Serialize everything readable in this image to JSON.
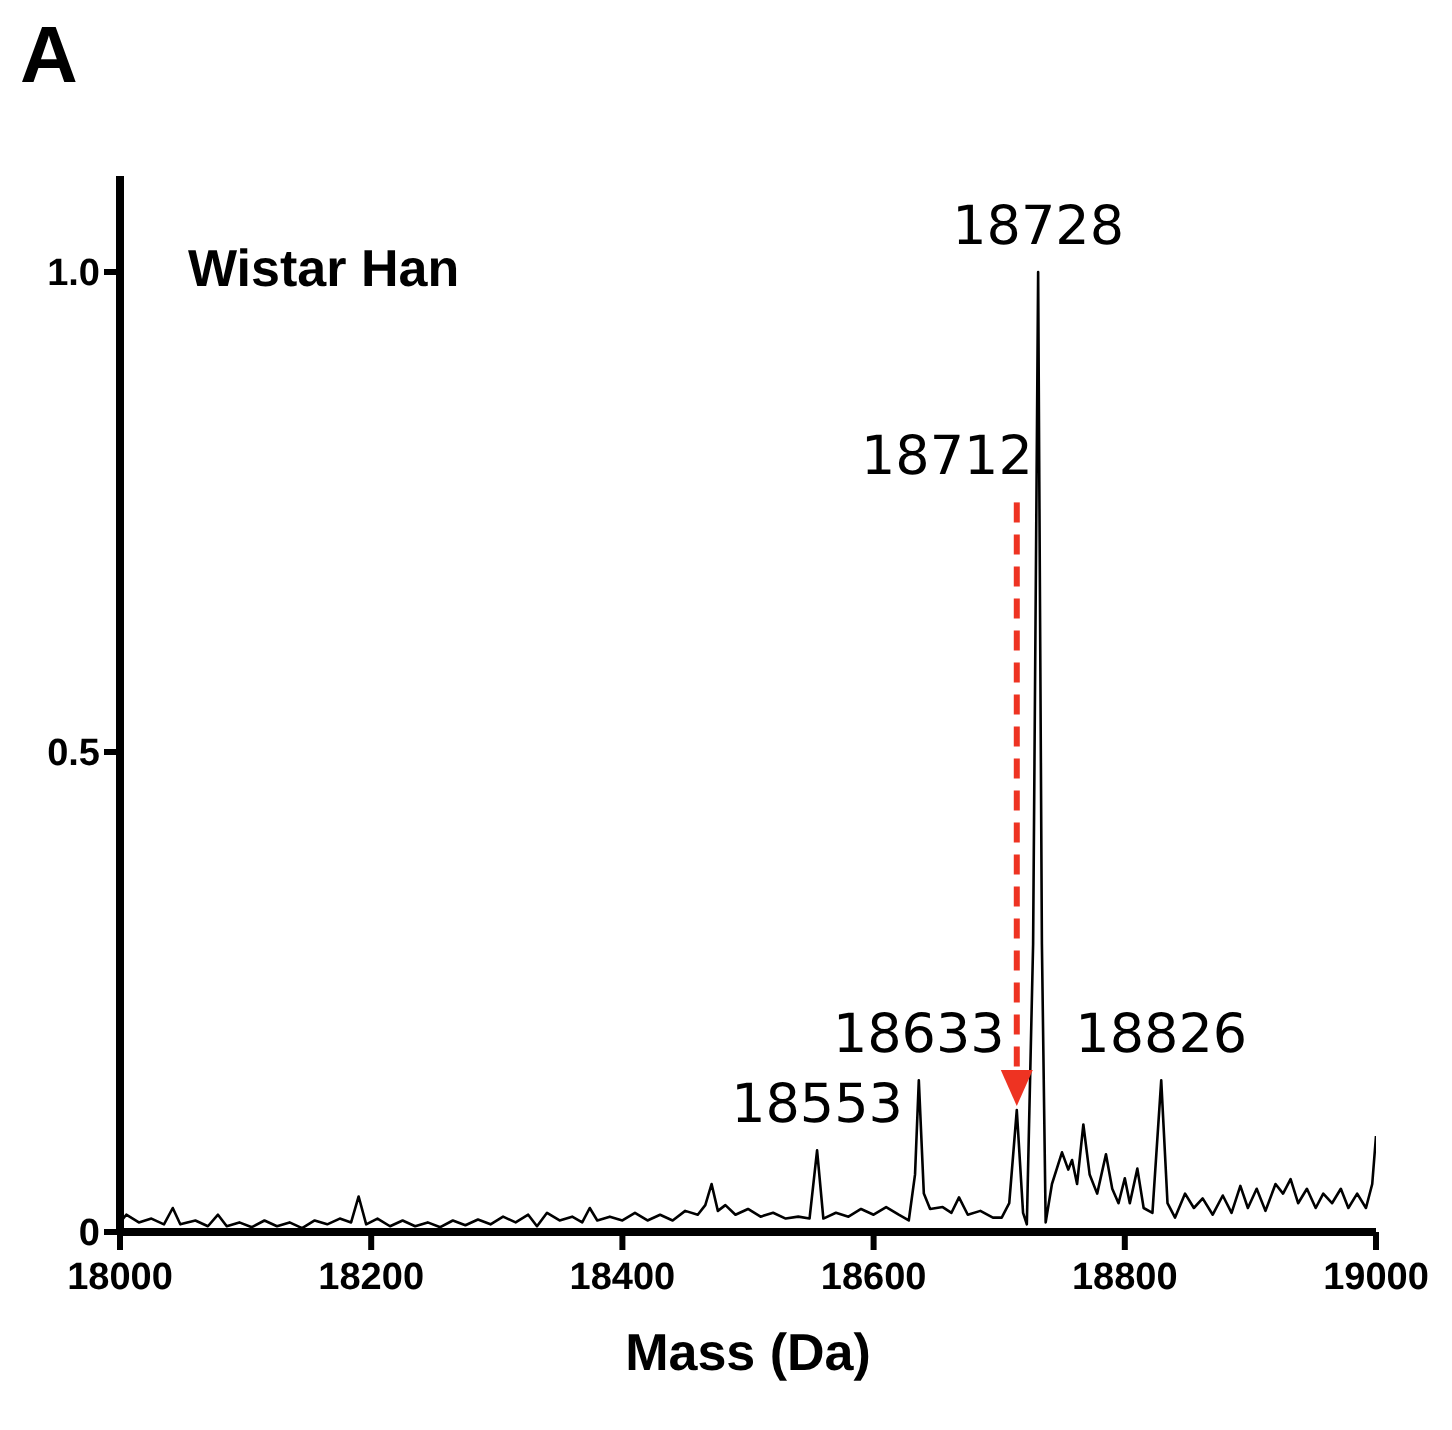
{
  "chart_data": {
    "type": "line",
    "title": "A",
    "xlabel": "Mass (Da)",
    "color": "#000000",
    "marker": "none",
    "line_style": "solid",
    "grid": false,
    "legend": false,
    "xlim": [
      18000,
      19000
    ],
    "xticks": [
      18000,
      18200,
      18400,
      18600,
      18800,
      19000
    ],
    "ylim": [
      0,
      1.1
    ],
    "yticks": [
      0,
      0.5,
      {
        "value": 1,
        "label": "1.0"
      }
    ],
    "annotations": [
      "Wistar Han",
      {
        "text": "18553",
        "x": 18555,
        "y": 0.085
      },
      {
        "text": "18633",
        "x": 18636,
        "y": 0.158
      },
      "18712",
      {
        "text": "18728",
        "x": 18731,
        "y": 1.0
      },
      {
        "text": "18826",
        "x": 18829,
        "y": 0.158
      }
    ],
    "x": [
      18000,
      18005,
      18015,
      18025,
      18035,
      18042,
      18048,
      18060,
      18070,
      18078,
      18085,
      18095,
      18105,
      18115,
      18125,
      18135,
      18145,
      18155,
      18165,
      18175,
      18184,
      18190,
      18196,
      18205,
      18215,
      18225,
      18235,
      18245,
      18255,
      18265,
      18275,
      18285,
      18295,
      18305,
      18315,
      18325,
      18332,
      18340,
      18350,
      18360,
      18368,
      18374,
      18380,
      18390,
      18400,
      18410,
      18420,
      18430,
      18440,
      18450,
      18460,
      18466,
      18471,
      18476,
      18482,
      18490,
      18500,
      18510,
      18520,
      18530,
      18540,
      18549,
      18555,
      18560,
      18570,
      18580,
      18590,
      18600,
      18610,
      18620,
      18628,
      18633,
      18636,
      18640,
      18645,
      18655,
      18662,
      18668,
      18675,
      18685,
      18695,
      18702,
      18708,
      18714,
      18719,
      18722,
      18727,
      18731,
      18734,
      18737,
      18742,
      18750,
      18755,
      18758,
      18762,
      18767,
      18772,
      18778,
      18785,
      18790,
      18795,
      18800,
      18804,
      18810,
      18815,
      18822,
      18829,
      18834,
      18840,
      18848,
      18855,
      18862,
      18870,
      18878,
      18885,
      18892,
      18898,
      18905,
      18912,
      18920,
      18926,
      18932,
      18938,
      18945,
      18952,
      18958,
      18965,
      18972,
      18978,
      18985,
      18992,
      18997,
      19000
    ],
    "values": [
      0.01,
      0.018,
      0.01,
      0.014,
      0.008,
      0.025,
      0.008,
      0.012,
      0.006,
      0.018,
      0.006,
      0.01,
      0.005,
      0.012,
      0.006,
      0.01,
      0.004,
      0.012,
      0.008,
      0.014,
      0.01,
      0.037,
      0.008,
      0.014,
      0.006,
      0.012,
      0.006,
      0.01,
      0.005,
      0.012,
      0.007,
      0.013,
      0.008,
      0.016,
      0.01,
      0.018,
      0.006,
      0.02,
      0.012,
      0.016,
      0.01,
      0.025,
      0.012,
      0.016,
      0.012,
      0.02,
      0.012,
      0.018,
      0.012,
      0.022,
      0.018,
      0.028,
      0.05,
      0.022,
      0.028,
      0.018,
      0.024,
      0.016,
      0.02,
      0.014,
      0.016,
      0.014,
      0.085,
      0.014,
      0.02,
      0.016,
      0.024,
      0.018,
      0.026,
      0.018,
      0.012,
      0.06,
      0.158,
      0.04,
      0.024,
      0.026,
      0.02,
      0.036,
      0.018,
      0.022,
      0.015,
      0.015,
      0.03,
      0.127,
      0.02,
      0.008,
      0.3,
      1.0,
      0.3,
      0.01,
      0.05,
      0.083,
      0.065,
      0.075,
      0.05,
      0.112,
      0.06,
      0.04,
      0.081,
      0.045,
      0.03,
      0.056,
      0.03,
      0.066,
      0.025,
      0.02,
      0.158,
      0.03,
      0.015,
      0.04,
      0.025,
      0.035,
      0.018,
      0.038,
      0.02,
      0.048,
      0.025,
      0.045,
      0.022,
      0.05,
      0.04,
      0.055,
      0.03,
      0.045,
      0.025,
      0.04,
      0.03,
      0.045,
      0.025,
      0.04,
      0.025,
      0.05,
      0.1
    ]
  }
}
